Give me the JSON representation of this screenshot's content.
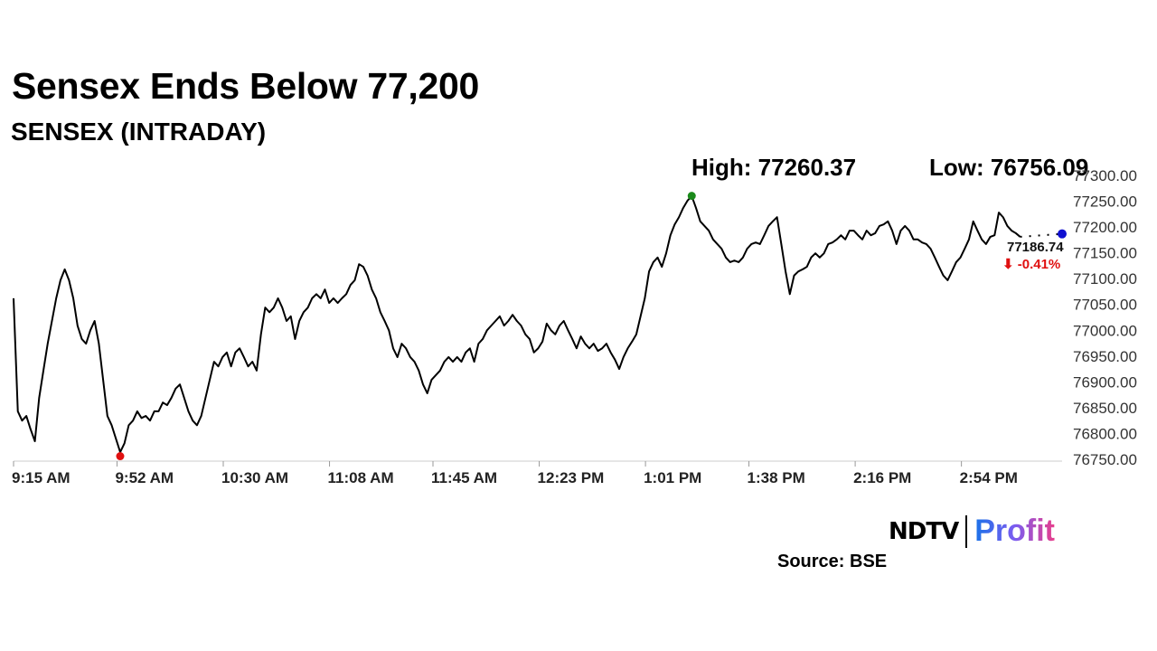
{
  "chart_data": {
    "type": "line",
    "title": "Sensex Ends Below 77,200",
    "subtitle": "SENSEX (INTRADAY)",
    "high_label": "High: 77260.37",
    "low_label": "Low: 76756.09",
    "high": 77260.37,
    "low": 76756.09,
    "close": 77186.74,
    "close_label": "77186.74",
    "change_label": "-0.41%",
    "change_arrow": "⬇",
    "session_minutes": 375,
    "series_end_minute": 360,
    "ylim": [
      76750,
      77300
    ],
    "yticks": [
      "77300.00",
      "77250.00",
      "77200.00",
      "77150.00",
      "77100.00",
      "77050.00",
      "77000.00",
      "76950.00",
      "76900.00",
      "76850.00",
      "76800.00",
      "76750.00"
    ],
    "xticks": [
      {
        "label": "9:15 AM",
        "minute": 0
      },
      {
        "label": "9:52 AM",
        "minute": 37
      },
      {
        "label": "10:30 AM",
        "minute": 75
      },
      {
        "label": "11:08 AM",
        "minute": 113
      },
      {
        "label": "11:45 AM",
        "minute": 150
      },
      {
        "label": "12:23 PM",
        "minute": 188
      },
      {
        "label": "1:01 PM",
        "minute": 226
      },
      {
        "label": "1:38 PM",
        "minute": 263
      },
      {
        "label": "2:16 PM",
        "minute": 301
      },
      {
        "label": "2:54 PM",
        "minute": 339
      }
    ],
    "values": [
      77062,
      76843,
      76825,
      76834,
      76808,
      76785,
      76869,
      76922,
      76974,
      77018,
      77062,
      77097,
      77118,
      77097,
      77062,
      77009,
      76983,
      76974,
      77000,
      77018,
      76974,
      76904,
      76834,
      76816,
      76790,
      76764,
      76781,
      76816,
      76825,
      76843,
      76830,
      76834,
      76825,
      76843,
      76843,
      76860,
      76855,
      76869,
      76887,
      76895,
      76869,
      76843,
      76825,
      76816,
      76834,
      76869,
      76904,
      76939,
      76930,
      76948,
      76957,
      76930,
      76957,
      76965,
      76948,
      76930,
      76939,
      76922,
      76992,
      77044,
      77035,
      77044,
      77062,
      77044,
      77018,
      77027,
      76983,
      77018,
      77035,
      77044,
      77062,
      77070,
      77062,
      77079,
      77053,
      77062,
      77053,
      77062,
      77070,
      77088,
      77097,
      77128,
      77123,
      77106,
      77079,
      77062,
      77035,
      77018,
      77000,
      76965,
      76948,
      76974,
      76965,
      76948,
      76939,
      76922,
      76895,
      76878,
      76904,
      76913,
      76922,
      76939,
      76948,
      76939,
      76948,
      76939,
      76957,
      76965,
      76939,
      76974,
      76983,
      77000,
      77009,
      77018,
      77027,
      77009,
      77018,
      77030,
      77018,
      77009,
      76992,
      76983,
      76957,
      76965,
      76978,
      77013,
      77000,
      76992,
      77009,
      77018,
      77000,
      76983,
      76965,
      76988,
      76974,
      76965,
      76974,
      76960,
      76965,
      76974,
      76957,
      76943,
      76925,
      76948,
      76965,
      76978,
      76992,
      77027,
      77062,
      77114,
      77132,
      77141,
      77123,
      77149,
      77184,
      77205,
      77219,
      77237,
      77251,
      77260,
      77237,
      77211,
      77202,
      77193,
      77176,
      77167,
      77158,
      77141,
      77132,
      77135,
      77132,
      77141,
      77158,
      77167,
      77170,
      77167,
      77184,
      77202,
      77211,
      77219,
      77167,
      77114,
      77070,
      77106,
      77114,
      77118,
      77123,
      77141,
      77149,
      77141,
      77149,
      77167,
      77170,
      77176,
      77184,
      77176,
      77193,
      77193,
      77184,
      77176,
      77193,
      77184,
      77188,
      77202,
      77205,
      77211,
      77193,
      77167,
      77193,
      77202,
      77193,
      77176,
      77176,
      77170,
      77167,
      77158,
      77141,
      77123,
      77106,
      77097,
      77114,
      77132,
      77141,
      77158,
      77176,
      77211,
      77193,
      77176,
      77167,
      77181,
      77184,
      77228,
      77219,
      77202,
      77193,
      77188,
      77181
    ],
    "colors": {
      "line": "#000000",
      "high_marker": "#1a8a1a",
      "low_marker": "#e01010",
      "close_marker": "#1010d0",
      "negative": "#e01010"
    }
  },
  "source": "Source: BSE",
  "logo": {
    "ndtv": "NDTV",
    "profit": "Profit"
  }
}
